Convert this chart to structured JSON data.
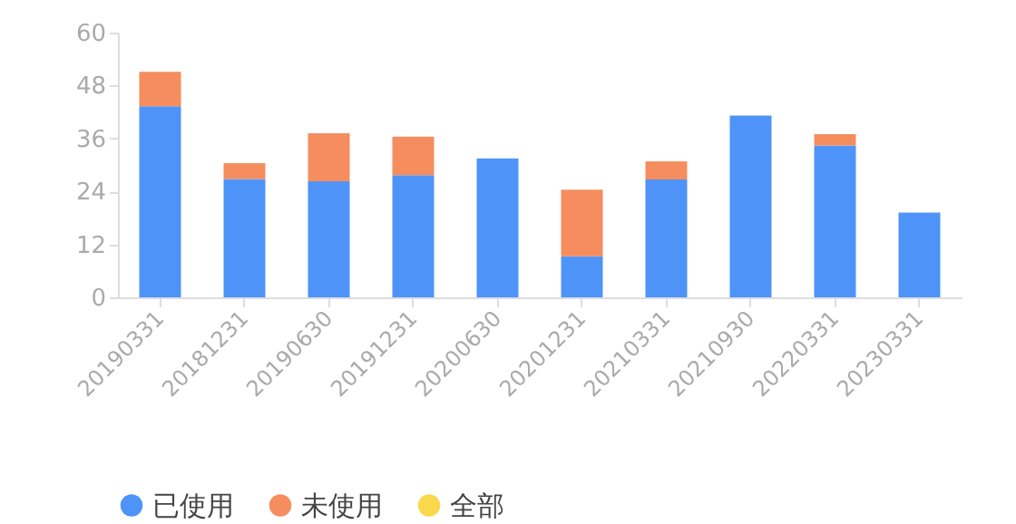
{
  "chart_data": {
    "type": "bar",
    "stacked": true,
    "categories": [
      "20190331",
      "20181231",
      "20190630",
      "20191231",
      "20200630",
      "20201231",
      "20210331",
      "20210930",
      "20220331",
      "20230331"
    ],
    "series": [
      {
        "name": "已使用",
        "color": "#4e94f8",
        "values": [
          43.3,
          26.8,
          26.3,
          27.7,
          31.5,
          9.3,
          26.7,
          41.2,
          34.4,
          19.2
        ]
      },
      {
        "name": "未使用",
        "color": "#f58d5e",
        "values": [
          7.8,
          3.6,
          10.9,
          8.7,
          null,
          15.1,
          4.1,
          null,
          2.6,
          null
        ]
      },
      {
        "name": "全部",
        "color": "#f9d84c",
        "values": [
          null,
          null,
          null,
          null,
          null,
          null,
          null,
          null,
          null,
          null
        ]
      }
    ],
    "ylim": [
      0,
      60
    ],
    "yticks": [
      0,
      12,
      24,
      36,
      48,
      60
    ],
    "grid": false,
    "legend": "bottom"
  }
}
